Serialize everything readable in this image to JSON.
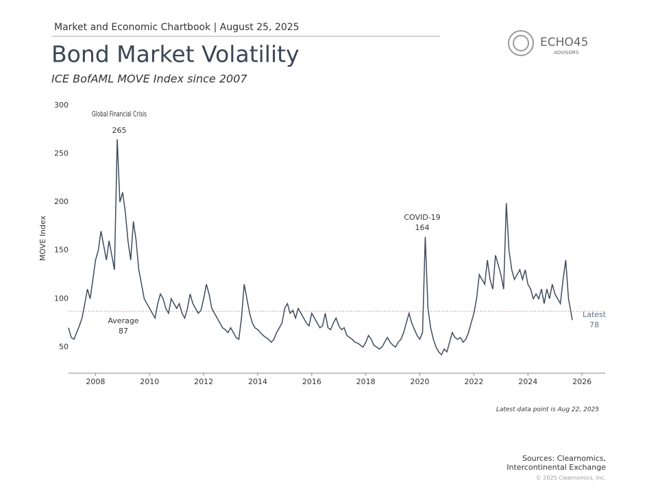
{
  "header": "Market and Economic Chartbook | August 25, 2025",
  "logo": {
    "name": "ECHO45",
    "tagline": "ADVISORS"
  },
  "footnote": "Latest data point is Aug 22, 2025",
  "sources": [
    "Sources: Clearnomics,",
    "Intercontinental Exchange"
  ],
  "copyright": "© 2025 Clearnomics, Inc.",
  "chart_data": {
    "type": "line",
    "title": "Bond Market Volatility",
    "subtitle": "ICE BofAML MOVE Index since 2007",
    "ylabel": "MOVE Index",
    "xlim": [
      2007.0,
      2026.86
    ],
    "ylim": [
      23,
      300
    ],
    "xticks": [
      2008,
      2010,
      2012,
      2014,
      2016,
      2018,
      2020,
      2022,
      2024,
      2026
    ],
    "yticks": [
      50,
      100,
      150,
      200,
      250,
      300
    ],
    "grid": false,
    "average": {
      "label": "Average",
      "value": 87,
      "color": "#e59a9a"
    },
    "annotations": [
      {
        "text": "Global Financial Crisis",
        "value": 265,
        "x": 2008.8
      },
      {
        "text": "COVID-19",
        "value": 164,
        "x": 2020.2
      },
      {
        "text": "Latest",
        "value": 78,
        "x": 2025.64
      }
    ],
    "series": [
      {
        "name": "MOVE Index",
        "color": "#3d4b5c",
        "x": [
          2007.0,
          2007.1,
          2007.2,
          2007.3,
          2007.4,
          2007.5,
          2007.6,
          2007.7,
          2007.8,
          2007.9,
          2008.0,
          2008.1,
          2008.2,
          2008.3,
          2008.4,
          2008.5,
          2008.6,
          2008.7,
          2008.8,
          2008.9,
          2009.0,
          2009.1,
          2009.2,
          2009.3,
          2009.4,
          2009.5,
          2009.6,
          2009.7,
          2009.8,
          2009.9,
          2010.0,
          2010.1,
          2010.2,
          2010.3,
          2010.4,
          2010.5,
          2010.6,
          2010.7,
          2010.8,
          2010.9,
          2011.0,
          2011.1,
          2011.2,
          2011.3,
          2011.4,
          2011.5,
          2011.6,
          2011.7,
          2011.8,
          2011.9,
          2012.0,
          2012.1,
          2012.2,
          2012.3,
          2012.4,
          2012.5,
          2012.6,
          2012.7,
          2012.8,
          2012.9,
          2013.0,
          2013.1,
          2013.2,
          2013.3,
          2013.4,
          2013.5,
          2013.6,
          2013.7,
          2013.8,
          2013.9,
          2014.0,
          2014.1,
          2014.2,
          2014.3,
          2014.4,
          2014.5,
          2014.6,
          2014.7,
          2014.8,
          2014.9,
          2015.0,
          2015.1,
          2015.2,
          2015.3,
          2015.4,
          2015.5,
          2015.6,
          2015.7,
          2015.8,
          2015.9,
          2016.0,
          2016.1,
          2016.2,
          2016.3,
          2016.4,
          2016.5,
          2016.6,
          2016.7,
          2016.8,
          2016.9,
          2017.0,
          2017.1,
          2017.2,
          2017.3,
          2017.4,
          2017.5,
          2017.6,
          2017.7,
          2017.8,
          2017.9,
          2018.0,
          2018.1,
          2018.2,
          2018.3,
          2018.4,
          2018.5,
          2018.6,
          2018.7,
          2018.8,
          2018.9,
          2019.0,
          2019.1,
          2019.2,
          2019.3,
          2019.4,
          2019.5,
          2019.6,
          2019.7,
          2019.8,
          2019.9,
          2020.0,
          2020.1,
          2020.2,
          2020.3,
          2020.4,
          2020.5,
          2020.6,
          2020.7,
          2020.8,
          2020.9,
          2021.0,
          2021.1,
          2021.2,
          2021.3,
          2021.4,
          2021.5,
          2021.6,
          2021.7,
          2021.8,
          2021.9,
          2022.0,
          2022.1,
          2022.2,
          2022.3,
          2022.4,
          2022.5,
          2022.6,
          2022.7,
          2022.8,
          2022.9,
          2023.0,
          2023.1,
          2023.2,
          2023.3,
          2023.4,
          2023.5,
          2023.6,
          2023.7,
          2023.8,
          2023.9,
          2024.0,
          2024.1,
          2024.2,
          2024.3,
          2024.4,
          2024.5,
          2024.6,
          2024.7,
          2024.8,
          2024.9,
          2025.0,
          2025.1,
          2025.2,
          2025.3,
          2025.4,
          2025.5,
          2025.6,
          2025.64
        ],
        "values": [
          70,
          60,
          58,
          65,
          72,
          80,
          95,
          110,
          100,
          120,
          140,
          150,
          170,
          155,
          140,
          160,
          145,
          130,
          265,
          200,
          210,
          190,
          160,
          140,
          180,
          160,
          130,
          115,
          100,
          95,
          90,
          85,
          80,
          95,
          105,
          100,
          90,
          85,
          100,
          95,
          90,
          95,
          85,
          80,
          90,
          105,
          95,
          90,
          85,
          88,
          100,
          115,
          105,
          90,
          85,
          80,
          75,
          70,
          68,
          65,
          70,
          65,
          60,
          58,
          80,
          115,
          100,
          85,
          75,
          70,
          68,
          65,
          62,
          60,
          58,
          55,
          58,
          65,
          70,
          75,
          90,
          95,
          85,
          88,
          80,
          90,
          85,
          80,
          75,
          72,
          85,
          80,
          75,
          70,
          72,
          85,
          70,
          68,
          75,
          80,
          72,
          68,
          70,
          62,
          60,
          58,
          55,
          54,
          52,
          50,
          55,
          62,
          58,
          52,
          50,
          48,
          50,
          55,
          60,
          55,
          52,
          50,
          55,
          58,
          65,
          75,
          85,
          75,
          68,
          62,
          58,
          65,
          164,
          90,
          70,
          58,
          50,
          45,
          42,
          48,
          45,
          55,
          65,
          60,
          58,
          60,
          55,
          58,
          65,
          75,
          85,
          100,
          125,
          120,
          115,
          140,
          120,
          110,
          145,
          135,
          125,
          110,
          199,
          150,
          130,
          120,
          125,
          130,
          120,
          130,
          115,
          110,
          100,
          105,
          100,
          110,
          95,
          110,
          100,
          115,
          105,
          100,
          95,
          120,
          140,
          100,
          85,
          78
        ]
      }
    ]
  }
}
